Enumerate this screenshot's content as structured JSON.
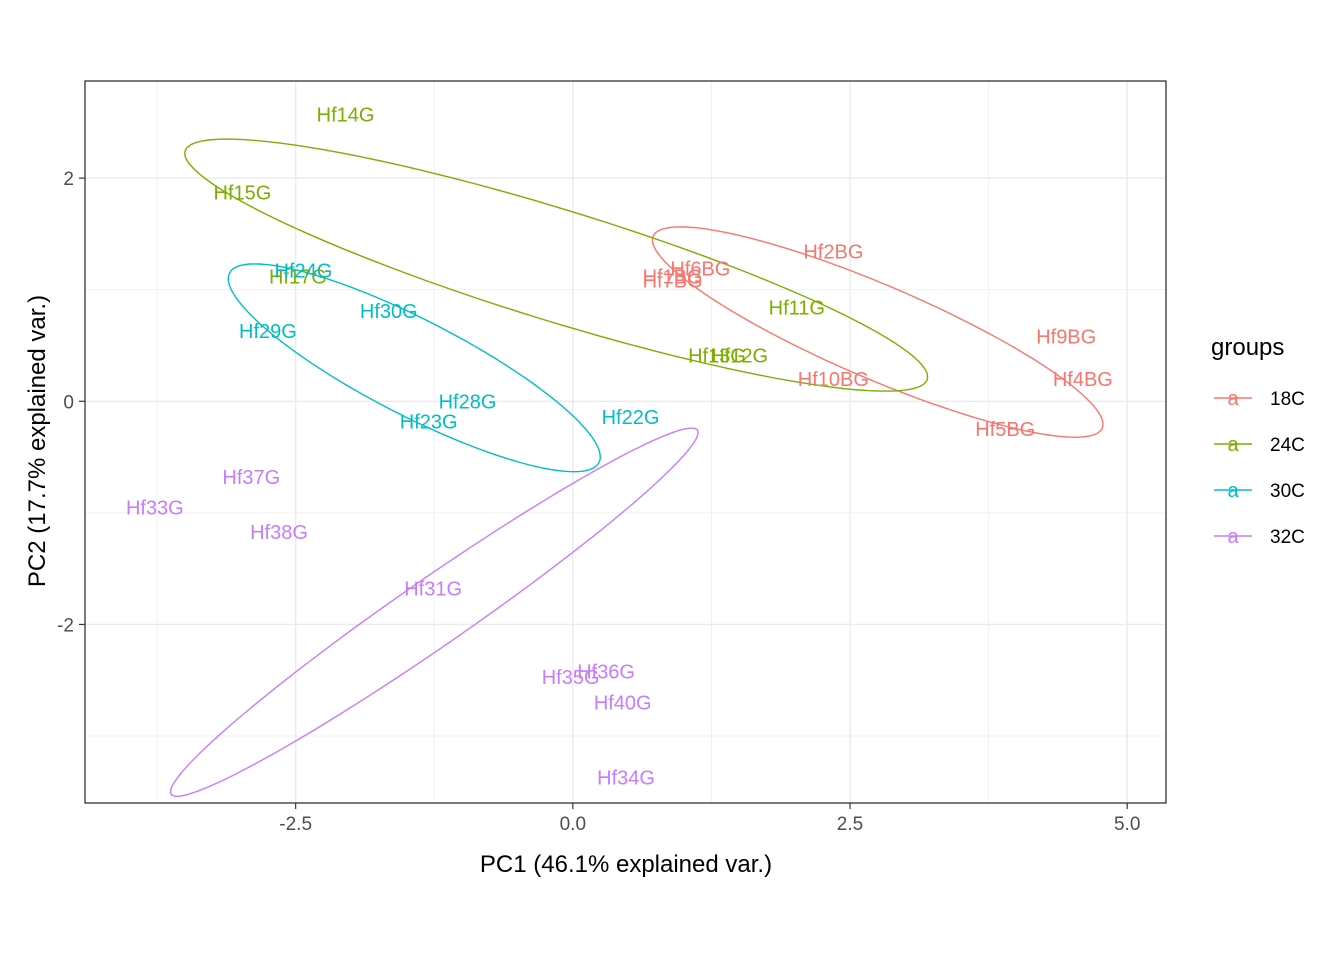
{
  "chart_data": {
    "type": "scatter",
    "xlabel": "PC1 (46.1% explained var.)",
    "ylabel": "PC2 (17.7% explained var.)",
    "xlim": [
      -4.4,
      5.35
    ],
    "ylim": [
      -3.6,
      2.87
    ],
    "x_ticks": [
      -2.5,
      0.0,
      2.5,
      5.0
    ],
    "x_tick_labels": [
      "-2.5",
      "0.0",
      "2.5",
      "5.0"
    ],
    "y_ticks": [
      -2,
      0,
      2
    ],
    "y_tick_labels": [
      "-2",
      "0",
      "2"
    ],
    "grid": true,
    "legend": {
      "title": "groups",
      "position": "right",
      "key_glyph": "a",
      "entries": [
        {
          "label": "18C",
          "color": "#F8766D"
        },
        {
          "label": "24C",
          "color": "#7CAE00"
        },
        {
          "label": "30C",
          "color": "#00BFC4"
        },
        {
          "label": "32C",
          "color": "#C77CFF"
        }
      ]
    },
    "series": [
      {
        "name": "18C",
        "color": "#F8766D",
        "points": [
          {
            "label": "Hf2BG",
            "x": 2.35,
            "y": 1.34
          },
          {
            "label": "Hf6BG",
            "x": 1.15,
            "y": 1.19
          },
          {
            "label": "Hf1BG",
            "x": 0.9,
            "y": 1.12
          },
          {
            "label": "Hf7BG",
            "x": 0.9,
            "y": 1.08
          },
          {
            "label": "Hf9BG",
            "x": 4.45,
            "y": 0.58
          },
          {
            "label": "Hf4BG",
            "x": 4.6,
            "y": 0.2
          },
          {
            "label": "Hf10BG",
            "x": 2.35,
            "y": 0.2
          },
          {
            "label": "Hf5BG",
            "x": 3.9,
            "y": -0.25
          }
        ],
        "ellipse": {
          "center": [
            2.75,
            0.62
          ],
          "rx": 2.2,
          "ry": 0.42,
          "angle_deg": -23
        }
      },
      {
        "name": "24C",
        "color": "#7CAE00",
        "points": [
          {
            "label": "Hf14G",
            "x": -2.05,
            "y": 2.57
          },
          {
            "label": "Hf15G",
            "x": -2.98,
            "y": 1.87
          },
          {
            "label": "Hf17G",
            "x": -2.48,
            "y": 1.12
          },
          {
            "label": "Hf11G",
            "x": 2.02,
            "y": 0.84
          },
          {
            "label": "Hf13G",
            "x": 1.3,
            "y": 0.41
          },
          {
            "label": "Hf12G",
            "x": 1.5,
            "y": 0.41
          }
        ],
        "ellipse": {
          "center": [
            -0.15,
            1.22
          ],
          "rx": 3.5,
          "ry": 0.5,
          "angle_deg": -17
        }
      },
      {
        "name": "30C",
        "color": "#00BFC4",
        "points": [
          {
            "label": "Hf24G",
            "x": -2.43,
            "y": 1.17
          },
          {
            "label": "Hf29G",
            "x": -2.75,
            "y": 0.63
          },
          {
            "label": "Hf30G",
            "x": -1.66,
            "y": 0.81
          },
          {
            "label": "Hf28G",
            "x": -0.95,
            "y": 0.0
          },
          {
            "label": "Hf23G",
            "x": -1.3,
            "y": -0.18
          },
          {
            "label": "Hf22G",
            "x": 0.52,
            "y": -0.14
          }
        ],
        "ellipse": {
          "center": [
            -1.43,
            0.3
          ],
          "rx": 1.87,
          "ry": 0.43,
          "angle_deg": -27
        }
      },
      {
        "name": "32C",
        "color": "#C77CFF",
        "points": [
          {
            "label": "Hf37G",
            "x": -2.9,
            "y": -0.68
          },
          {
            "label": "Hf33G",
            "x": -3.77,
            "y": -0.95
          },
          {
            "label": "Hf38G",
            "x": -2.65,
            "y": -1.17
          },
          {
            "label": "Hf31G",
            "x": -1.26,
            "y": -1.68
          },
          {
            "label": "Hf35G",
            "x": -0.02,
            "y": -2.47
          },
          {
            "label": "Hf36G",
            "x": 0.3,
            "y": -2.42
          },
          {
            "label": "Hf40G",
            "x": 0.45,
            "y": -2.7
          },
          {
            "label": "Hf34G",
            "x": 0.48,
            "y": -3.37
          }
        ],
        "ellipse": {
          "center": [
            -1.25,
            -1.89
          ],
          "rx": 2.88,
          "ry": 0.3,
          "angle_deg": 34.5
        }
      }
    ]
  }
}
